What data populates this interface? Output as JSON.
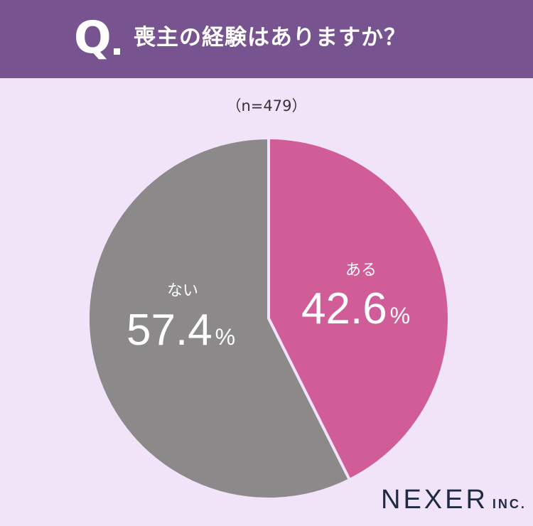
{
  "header": {
    "q_mark": "Q",
    "question": "喪主の経験はありますか？"
  },
  "sample_size": "（n=479）",
  "chart_data": {
    "type": "pie",
    "title": "喪主の経験はありますか？",
    "slices": [
      {
        "label": "ある",
        "value": 42.6,
        "value_text": "42.6",
        "unit": "%",
        "color": "#d05d98"
      },
      {
        "label": "ない",
        "value": 57.4,
        "value_text": "57.4",
        "unit": "%",
        "color": "#8b8989"
      }
    ],
    "start": "12 o'clock",
    "direction": "clockwise"
  },
  "logo": {
    "name": "NEXER",
    "suffix": "INC."
  },
  "colors": {
    "header_bg": "#77538f",
    "page_bg": "#f2e4f8",
    "logo": "#1f2a44"
  }
}
